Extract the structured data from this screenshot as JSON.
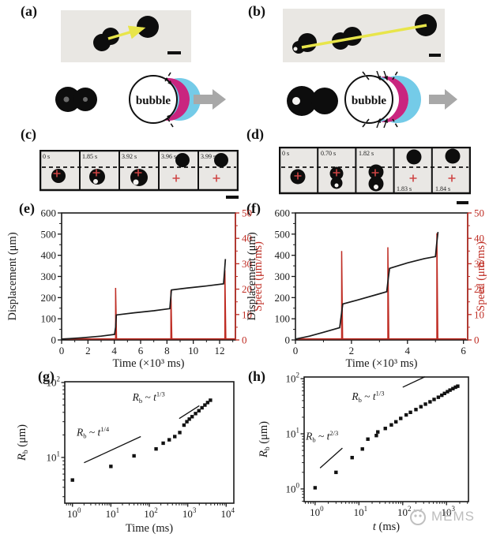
{
  "figure": {
    "panel_labels": {
      "a": "(a)",
      "b": "(b)",
      "c": "(c)",
      "d": "(d)",
      "e": "(e)",
      "f": "(f)",
      "g": "(g)",
      "h": "(h)"
    },
    "bubble_label": "bubble",
    "c_timestamps": [
      "0 s",
      "1.85 s",
      "3.92 s",
      "3.96 s",
      "3.99 s"
    ],
    "d_timestamps": [
      "0 s",
      "0.70 s",
      "1.82 s",
      "1.83 s",
      "1.84 s"
    ],
    "watermark": "MEMS"
  },
  "colors": {
    "speed_axis_red": "#bf2d24",
    "magenta_crescent": "#c9257f",
    "cyan_crescent": "#74cbe8",
    "tracking_line_yellow": "#e8e54a",
    "marker_cross_red": "#cf4545",
    "arrow_gray": "#a8a8a8"
  },
  "chart_data": [
    {
      "id": "e",
      "type": "line",
      "panel": "(e)",
      "xlabel": "Time (×10³ ms)",
      "xlim": [
        0,
        13.2
      ],
      "x_major_ticks": [
        0,
        2,
        4,
        6,
        8,
        10,
        12
      ],
      "x_minor_step": 1,
      "left_axis": {
        "label": "Displacement (μm)",
        "lim": [
          0,
          600
        ],
        "ticks": [
          0,
          100,
          200,
          300,
          400,
          500,
          600
        ],
        "minor_step": 50,
        "color": "#1a1a1a"
      },
      "right_axis": {
        "label": "Speed (μm/ms)",
        "lim": [
          0,
          50
        ],
        "ticks": [
          0,
          10,
          20,
          30,
          40,
          50
        ],
        "minor_step": 5,
        "color": "#bf2d24"
      },
      "displacement_points": [
        [
          0,
          4
        ],
        [
          1.5,
          10
        ],
        [
          3,
          18
        ],
        [
          4.02,
          26
        ],
        [
          4.1,
          60
        ],
        [
          4.16,
          118
        ],
        [
          5.5,
          128
        ],
        [
          7,
          138
        ],
        [
          8.22,
          148
        ],
        [
          8.28,
          195
        ],
        [
          8.34,
          236
        ],
        [
          9.5,
          245
        ],
        [
          11,
          255
        ],
        [
          12.3,
          265
        ],
        [
          12.38,
          330
        ],
        [
          12.44,
          382
        ]
      ],
      "speed_spikes": [
        [
          4.1,
          20.5
        ],
        [
          8.3,
          19.5
        ],
        [
          12.4,
          27.5
        ]
      ],
      "speed_baseline": 0.4
    },
    {
      "id": "f",
      "type": "line",
      "panel": "(f)",
      "xlabel": "Time (×10³ ms)",
      "xlim": [
        0,
        6.15
      ],
      "x_major_ticks": [
        0,
        2,
        4,
        6
      ],
      "x_minor_step": 1,
      "left_axis": {
        "label": "Displacement (μm)",
        "lim": [
          0,
          600
        ],
        "ticks": [
          0,
          100,
          200,
          300,
          400,
          500,
          600
        ],
        "minor_step": 50,
        "color": "#1a1a1a"
      },
      "right_axis": {
        "label": "Speed (μm/ms)",
        "lim": [
          0,
          50
        ],
        "ticks": [
          0,
          10,
          20,
          30,
          40,
          50
        ],
        "minor_step": 5,
        "color": "#bf2d24"
      },
      "displacement_points": [
        [
          0,
          4
        ],
        [
          0.5,
          18
        ],
        [
          1,
          36
        ],
        [
          1.58,
          58
        ],
        [
          1.63,
          110
        ],
        [
          1.69,
          170
        ],
        [
          2.2,
          188
        ],
        [
          3,
          218
        ],
        [
          3.26,
          228
        ],
        [
          3.31,
          285
        ],
        [
          3.36,
          338
        ],
        [
          4,
          364
        ],
        [
          4.6,
          384
        ],
        [
          5,
          394
        ],
        [
          5.04,
          450
        ],
        [
          5.09,
          510
        ]
      ],
      "speed_spikes": [
        [
          1.65,
          35
        ],
        [
          3.3,
          36.5
        ],
        [
          5.05,
          42
        ]
      ],
      "speed_baseline": 0.4
    },
    {
      "id": "g",
      "type": "scatter",
      "panel": "(g)",
      "xlabel": "Time (ms)",
      "xscale": "log",
      "yscale": "log",
      "xlim_exp": [
        -0.2,
        4.2
      ],
      "x_decades": [
        0,
        1,
        2,
        3,
        4
      ],
      "ylabel": {
        "base": "R",
        "sub": "b",
        "rest": " (μm)"
      },
      "ylim_exp": [
        0.39,
        2.01
      ],
      "y_decades": [
        1,
        2
      ],
      "points": [
        [
          1,
          5
        ],
        [
          10,
          7.6
        ],
        [
          40,
          10.5
        ],
        [
          150,
          13
        ],
        [
          230,
          15.5
        ],
        [
          330,
          17.2
        ],
        [
          460,
          19
        ],
        [
          620,
          21.5
        ],
        [
          800,
          27
        ],
        [
          950,
          30
        ],
        [
          1100,
          32.5
        ],
        [
          1300,
          35
        ],
        [
          1600,
          38.5
        ],
        [
          1950,
          42
        ],
        [
          2350,
          46
        ],
        [
          2800,
          50
        ],
        [
          3300,
          54
        ],
        [
          3900,
          58
        ]
      ],
      "annotations": [
        {
          "base": "R",
          "sub": "b",
          "tilde": " ~ ",
          "var": "t",
          "exp": "1/4",
          "line": [
            [
              2,
              8.5
            ],
            [
              60,
              19
            ]
          ],
          "label_pos": [
            0.07,
            0.38
          ]
        },
        {
          "base": "R",
          "sub": "b",
          "tilde": " ~ ",
          "var": "t",
          "exp": "1/3",
          "line": [
            [
              600,
              33
            ],
            [
              2000,
              49
            ]
          ],
          "label_pos": [
            0.4,
            0.09
          ]
        }
      ]
    },
    {
      "id": "h",
      "type": "scatter",
      "panel": "(h)",
      "xlabel_var": "t",
      "xlabel_rest": " (ms)",
      "xscale": "log",
      "yscale": "log",
      "xlim_exp": [
        -0.25,
        3.5
      ],
      "x_decades": [
        0,
        1,
        2,
        3
      ],
      "ylabel": {
        "base": "R",
        "sub": "b",
        "rest": " (μm)"
      },
      "ylim_exp": [
        -0.23,
        2.03
      ],
      "y_decades": [
        0,
        1,
        2
      ],
      "points": [
        [
          1,
          1.05
        ],
        [
          3,
          2
        ],
        [
          7,
          3.7
        ],
        [
          12,
          5.3
        ],
        [
          16,
          8
        ],
        [
          25,
          9.3
        ],
        [
          27,
          10.8
        ],
        [
          40,
          12.5
        ],
        [
          55,
          14.5
        ],
        [
          70,
          16.5
        ],
        [
          90,
          19
        ],
        [
          120,
          22
        ],
        [
          150,
          24.5
        ],
        [
          200,
          27.5
        ],
        [
          260,
          31
        ],
        [
          330,
          34.5
        ],
        [
          420,
          38
        ],
        [
          520,
          42
        ],
        [
          650,
          46
        ],
        [
          780,
          50
        ],
        [
          900,
          54
        ],
        [
          1050,
          58
        ],
        [
          1200,
          62
        ],
        [
          1400,
          66
        ],
        [
          1600,
          70
        ],
        [
          1800,
          73
        ]
      ],
      "annotations": [
        {
          "base": "R",
          "sub": "b",
          "tilde": " ~ ",
          "var": "t",
          "exp": "2/3",
          "line": [
            [
              1.3,
              2.4
            ],
            [
              4.2,
              5.5
            ]
          ],
          "label_pos": [
            0.01,
            0.44
          ]
        },
        {
          "base": "R",
          "sub": "b",
          "tilde": " ~ ",
          "var": "t",
          "exp": "1/3",
          "line": [
            [
              100,
              70
            ],
            [
              320,
              108
            ]
          ],
          "label_pos": [
            0.29,
            0.12
          ]
        }
      ]
    }
  ]
}
